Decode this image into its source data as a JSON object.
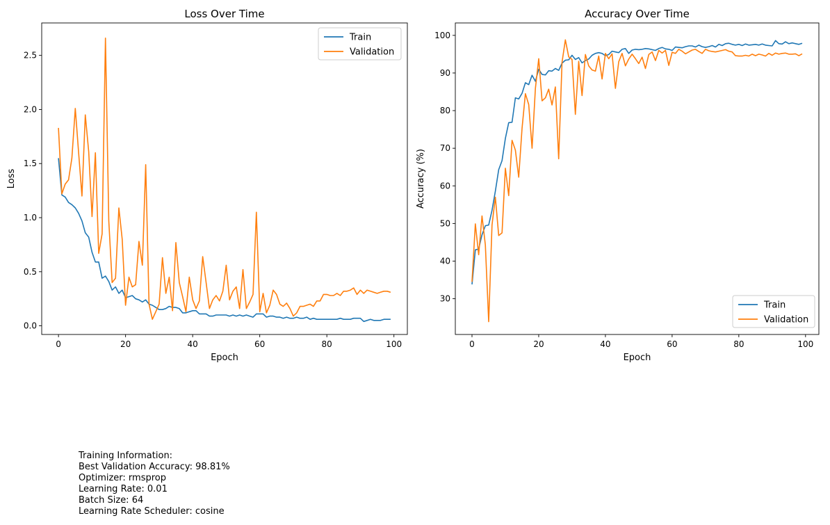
{
  "chart_data": [
    {
      "type": "line",
      "title": "Loss Over Time",
      "xlabel": "Epoch",
      "ylabel": "Loss",
      "xlim": [
        -5,
        104
      ],
      "ylim": [
        -0.08,
        2.8
      ],
      "xticks": [
        0,
        20,
        40,
        60,
        80,
        100
      ],
      "yticks": [
        0.0,
        0.5,
        1.0,
        1.5,
        2.0,
        2.5
      ],
      "yticklabels": [
        "0.0",
        "0.5",
        "1.0",
        "1.5",
        "2.0",
        "2.5"
      ],
      "grid": false,
      "legend_position": "top-right",
      "x": [
        0,
        1,
        2,
        3,
        4,
        5,
        6,
        7,
        8,
        9,
        10,
        11,
        12,
        13,
        14,
        15,
        16,
        17,
        18,
        19,
        20,
        21,
        22,
        23,
        24,
        25,
        26,
        27,
        28,
        29,
        30,
        31,
        32,
        33,
        34,
        35,
        36,
        37,
        38,
        39,
        40,
        41,
        42,
        43,
        44,
        45,
        46,
        47,
        48,
        49,
        50,
        51,
        52,
        53,
        54,
        55,
        56,
        57,
        58,
        59,
        60,
        61,
        62,
        63,
        64,
        65,
        66,
        67,
        68,
        69,
        70,
        71,
        72,
        73,
        74,
        75,
        76,
        77,
        78,
        79,
        80,
        81,
        82,
        83,
        84,
        85,
        86,
        87,
        88,
        89,
        90,
        91,
        92,
        93,
        94,
        95,
        96,
        97,
        98,
        99
      ],
      "series": [
        {
          "name": "Train",
          "color": "#1f77b4",
          "values": [
            1.55,
            1.21,
            1.19,
            1.14,
            1.12,
            1.09,
            1.04,
            0.97,
            0.86,
            0.82,
            0.68,
            0.59,
            0.59,
            0.44,
            0.46,
            0.41,
            0.33,
            0.36,
            0.3,
            0.33,
            0.26,
            0.27,
            0.28,
            0.25,
            0.24,
            0.22,
            0.24,
            0.2,
            0.19,
            0.17,
            0.15,
            0.15,
            0.16,
            0.18,
            0.17,
            0.17,
            0.16,
            0.12,
            0.12,
            0.13,
            0.14,
            0.14,
            0.11,
            0.11,
            0.11,
            0.09,
            0.09,
            0.1,
            0.1,
            0.1,
            0.1,
            0.09,
            0.1,
            0.09,
            0.1,
            0.09,
            0.1,
            0.09,
            0.08,
            0.11,
            0.11,
            0.11,
            0.08,
            0.09,
            0.09,
            0.08,
            0.08,
            0.07,
            0.08,
            0.07,
            0.07,
            0.08,
            0.07,
            0.07,
            0.08,
            0.06,
            0.07,
            0.06,
            0.06,
            0.06,
            0.06,
            0.06,
            0.06,
            0.06,
            0.07,
            0.06,
            0.06,
            0.06,
            0.07,
            0.07,
            0.07,
            0.04,
            0.05,
            0.06,
            0.05,
            0.05,
            0.05,
            0.06,
            0.06,
            0.06
          ]
        },
        {
          "name": "Validation",
          "color": "#ff7f0e",
          "values": [
            1.83,
            1.22,
            1.31,
            1.35,
            1.55,
            2.01,
            1.6,
            1.2,
            1.95,
            1.61,
            1.01,
            1.6,
            0.67,
            0.85,
            2.66,
            0.97,
            0.4,
            0.44,
            1.09,
            0.8,
            0.19,
            0.45,
            0.36,
            0.38,
            0.78,
            0.56,
            1.49,
            0.2,
            0.06,
            0.13,
            0.2,
            0.63,
            0.3,
            0.45,
            0.14,
            0.77,
            0.4,
            0.27,
            0.13,
            0.45,
            0.24,
            0.16,
            0.23,
            0.64,
            0.4,
            0.16,
            0.24,
            0.28,
            0.23,
            0.32,
            0.56,
            0.24,
            0.32,
            0.36,
            0.16,
            0.52,
            0.16,
            0.22,
            0.29,
            1.05,
            0.13,
            0.3,
            0.12,
            0.19,
            0.33,
            0.29,
            0.2,
            0.18,
            0.21,
            0.16,
            0.09,
            0.12,
            0.18,
            0.18,
            0.19,
            0.2,
            0.18,
            0.23,
            0.23,
            0.29,
            0.29,
            0.28,
            0.28,
            0.3,
            0.28,
            0.32,
            0.32,
            0.33,
            0.35,
            0.29,
            0.33,
            0.3,
            0.33,
            0.32,
            0.31,
            0.3,
            0.31,
            0.32,
            0.32,
            0.31
          ]
        }
      ]
    },
    {
      "type": "line",
      "title": "Accuracy Over Time",
      "xlabel": "Epoch",
      "ylabel": "Accuracy (%)",
      "xlim": [
        -5,
        104
      ],
      "ylim": [
        20.5,
        103.3
      ],
      "xticks": [
        0,
        20,
        40,
        60,
        80,
        100
      ],
      "yticks": [
        30,
        40,
        50,
        60,
        70,
        80,
        90,
        100
      ],
      "yticklabels": [
        "30",
        "40",
        "50",
        "60",
        "70",
        "80",
        "90",
        "100"
      ],
      "grid": false,
      "legend_position": "bottom-right",
      "x": [
        0,
        1,
        2,
        3,
        4,
        5,
        6,
        7,
        8,
        9,
        10,
        11,
        12,
        13,
        14,
        15,
        16,
        17,
        18,
        19,
        20,
        21,
        22,
        23,
        24,
        25,
        26,
        27,
        28,
        29,
        30,
        31,
        32,
        33,
        34,
        35,
        36,
        37,
        38,
        39,
        40,
        41,
        42,
        43,
        44,
        45,
        46,
        47,
        48,
        49,
        50,
        51,
        52,
        53,
        54,
        55,
        56,
        57,
        58,
        59,
        60,
        61,
        62,
        63,
        64,
        65,
        66,
        67,
        68,
        69,
        70,
        71,
        72,
        73,
        74,
        75,
        76,
        77,
        78,
        79,
        80,
        81,
        82,
        83,
        84,
        85,
        86,
        87,
        88,
        89,
        90,
        91,
        92,
        93,
        94,
        95,
        96,
        97,
        98,
        99
      ],
      "series": [
        {
          "name": "Train",
          "color": "#1f77b4",
          "values": [
            33.8,
            43.0,
            43.2,
            47.0,
            49.4,
            49.6,
            53.5,
            58.6,
            64.3,
            66.7,
            72.6,
            76.8,
            76.9,
            83.4,
            83.1,
            84.6,
            87.4,
            86.9,
            89.4,
            87.8,
            91.0,
            89.6,
            89.5,
            90.6,
            90.5,
            91.2,
            90.7,
            92.6,
            93.4,
            93.5,
            94.7,
            93.6,
            94.1,
            92.7,
            93.3,
            93.7,
            94.7,
            95.2,
            95.4,
            95.2,
            94.6,
            94.9,
            95.8,
            95.6,
            95.4,
            96.3,
            96.5,
            95.2,
            96.1,
            96.3,
            96.2,
            96.3,
            96.5,
            96.4,
            96.2,
            96.0,
            96.5,
            96.8,
            96.4,
            96.3,
            96.0,
            96.9,
            96.8,
            96.7,
            97.0,
            97.2,
            97.2,
            96.9,
            97.4,
            97.0,
            96.8,
            97.0,
            97.3,
            96.9,
            97.6,
            97.3,
            97.8,
            97.9,
            97.6,
            97.4,
            97.6,
            97.3,
            97.7,
            97.4,
            97.5,
            97.6,
            97.4,
            97.7,
            97.4,
            97.3,
            97.2,
            98.6,
            97.8,
            97.7,
            98.3,
            97.8,
            98.0,
            97.8,
            97.6,
            97.9
          ]
        },
        {
          "name": "Validation",
          "color": "#ff7f0e",
          "values": [
            34.5,
            49.9,
            41.7,
            52.0,
            44.3,
            23.9,
            49.6,
            57.0,
            46.8,
            47.5,
            64.7,
            57.4,
            72.1,
            69.5,
            62.3,
            75.3,
            84.5,
            81.6,
            70.0,
            85.9,
            93.8,
            82.6,
            83.4,
            85.7,
            81.5,
            86.3,
            67.2,
            92.8,
            98.8,
            94.3,
            93.6,
            79.0,
            93.1,
            84.0,
            94.9,
            91.9,
            90.8,
            90.5,
            94.5,
            88.4,
            95.2,
            93.8,
            95.1,
            85.9,
            93.0,
            95.2,
            91.9,
            93.7,
            95.0,
            93.8,
            92.5,
            94.2,
            91.2,
            94.9,
            95.6,
            93.3,
            96.0,
            95.3,
            96.0,
            92.0,
            95.5,
            95.2,
            96.3,
            95.8,
            95.1,
            95.6,
            96.1,
            96.3,
            95.7,
            95.2,
            96.3,
            95.9,
            95.7,
            95.6,
            95.8,
            96.0,
            96.2,
            95.8,
            95.6,
            94.6,
            94.5,
            94.5,
            94.7,
            94.5,
            95.0,
            94.6,
            95.0,
            94.8,
            94.5,
            95.2,
            94.7,
            95.3,
            95.0,
            95.2,
            95.3,
            95.0,
            95.0,
            95.1,
            94.6,
            95.1
          ]
        }
      ]
    }
  ],
  "info": {
    "heading": "Training Information:",
    "lines": [
      "Best Validation Accuracy: 98.81%",
      "Optimizer: rmsprop",
      "Learning Rate: 0.01",
      "Batch Size: 64",
      "Learning Rate Scheduler: cosine"
    ]
  }
}
